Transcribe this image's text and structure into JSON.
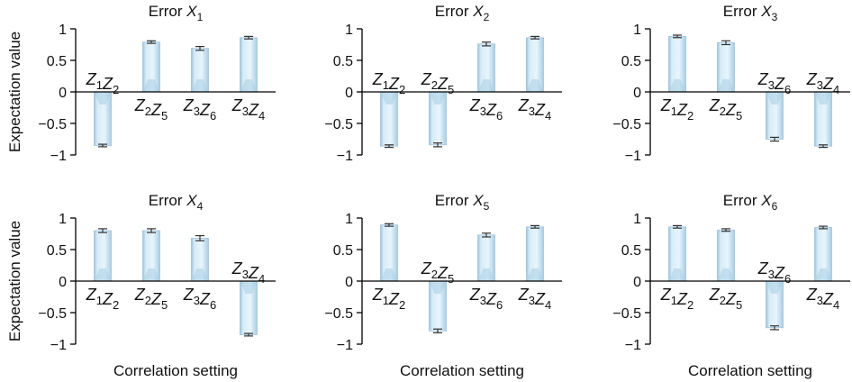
{
  "colors": {
    "bar_fill": "#c9e3f2",
    "bar_edge": "#9fc3db",
    "bar_shade": "#a8cde4",
    "axis": "#000000",
    "errorbar": "#333333"
  },
  "labels": {
    "ylabel": "Expectation value",
    "xlabel": "Correlation setting"
  },
  "chart_data": [
    {
      "type": "bar",
      "title": "Error X1",
      "title_main": "Error ",
      "title_var": "X",
      "title_sub": "1",
      "ylabel": "Expectation value",
      "xlabel": "",
      "ylim": [
        -1,
        1
      ],
      "yticks": [
        "1",
        "0.5",
        "0",
        "−0.5",
        "−1"
      ],
      "categories": [
        "Z1Z2",
        "Z2Z5",
        "Z3Z6",
        "Z3Z4"
      ],
      "values": [
        -0.85,
        0.79,
        0.69,
        0.86
      ],
      "errors": [
        0.02,
        0.02,
        0.03,
        0.02
      ]
    },
    {
      "type": "bar",
      "title": "Error X2",
      "title_main": "Error ",
      "title_var": "X",
      "title_sub": "2",
      "ylabel": "",
      "xlabel": "",
      "ylim": [
        -1,
        1
      ],
      "yticks": [
        "1",
        "0.5",
        "0",
        "−0.5",
        "−1"
      ],
      "categories": [
        "Z1Z2",
        "Z2Z5",
        "Z3Z6",
        "Z3Z4"
      ],
      "values": [
        -0.86,
        -0.84,
        0.76,
        0.86
      ],
      "errors": [
        0.02,
        0.03,
        0.03,
        0.02
      ]
    },
    {
      "type": "bar",
      "title": "Error X3",
      "title_main": "Error ",
      "title_var": "X",
      "title_sub": "3",
      "ylabel": "",
      "xlabel": "",
      "ylim": [
        -1,
        1
      ],
      "yticks": [
        "1",
        "0.5",
        "0",
        "−0.5",
        "−1"
      ],
      "categories": [
        "Z1Z2",
        "Z2Z5",
        "Z3Z6",
        "Z3Z4"
      ],
      "values": [
        0.88,
        0.78,
        -0.75,
        -0.86
      ],
      "errors": [
        0.02,
        0.03,
        0.03,
        0.02
      ]
    },
    {
      "type": "bar",
      "title": "Error X4",
      "title_main": "Error ",
      "title_var": "X",
      "title_sub": "4",
      "ylabel": "Expectation value",
      "xlabel": "Correlation setting",
      "ylim": [
        -1,
        1
      ],
      "yticks": [
        "1",
        "0.5",
        "0",
        "−0.5",
        "−1"
      ],
      "categories": [
        "Z1Z2",
        "Z2Z5",
        "Z3Z6",
        "Z3Z4"
      ],
      "values": [
        0.8,
        0.8,
        0.68,
        -0.85
      ],
      "errors": [
        0.03,
        0.03,
        0.04,
        0.02
      ]
    },
    {
      "type": "bar",
      "title": "Error X5",
      "title_main": "Error ",
      "title_var": "X",
      "title_sub": "5",
      "ylabel": "",
      "xlabel": "Correlation setting",
      "ylim": [
        -1,
        1
      ],
      "yticks": [
        "1",
        "0.5",
        "0",
        "−0.5",
        "−1"
      ],
      "categories": [
        "Z1Z2",
        "Z2Z5",
        "Z3Z6",
        "Z3Z4"
      ],
      "values": [
        0.89,
        -0.79,
        0.73,
        0.86
      ],
      "errors": [
        0.02,
        0.03,
        0.03,
        0.02
      ]
    },
    {
      "type": "bar",
      "title": "Error X6",
      "title_main": "Error ",
      "title_var": "X",
      "title_sub": "6",
      "ylabel": "",
      "xlabel": "Correlation setting",
      "ylim": [
        -1,
        1
      ],
      "yticks": [
        "1",
        "0.5",
        "0",
        "−0.5",
        "−1"
      ],
      "categories": [
        "Z1Z2",
        "Z2Z5",
        "Z3Z6",
        "Z3Z4"
      ],
      "values": [
        0.86,
        0.81,
        -0.74,
        0.85
      ],
      "errors": [
        0.02,
        0.02,
        0.03,
        0.02
      ]
    }
  ]
}
